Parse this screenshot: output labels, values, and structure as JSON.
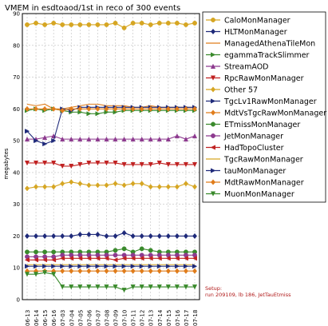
{
  "chart_data": {
    "type": "line",
    "title": "VMEM in esdtoaod/1st in reco of 300 events",
    "ylabel": "megabytes",
    "xlabel": "",
    "ylim": [
      0,
      90
    ],
    "yticks": [
      0,
      10,
      20,
      30,
      40,
      50,
      60,
      70,
      80,
      90
    ],
    "grid": true,
    "legend_placement": "right",
    "categories": [
      "06-13",
      "06-14",
      "06-15",
      "06-16",
      "07-03",
      "07-04",
      "07-05",
      "07-06",
      "07-07",
      "07-08",
      "07-09",
      "07-10",
      "07-11",
      "07-12",
      "07-13",
      "07-14",
      "07-15",
      "07-16",
      "07-17",
      "07-18"
    ],
    "x_tick_labels": [
      "06-13",
      "06-15",
      "07-03",
      "07-05",
      "07-07",
      "07-09",
      "07-11",
      "07-13",
      "07-15",
      "07-17",
      "06-14",
      "06-16",
      "07-04",
      "07-06",
      "07-08",
      "07-10",
      "07-12",
      "07-14",
      "07-16",
      "07-18"
    ],
    "annotation": {
      "line1": "Setup:",
      "line2": "run 209109, lb 186, JetTauEtmiss"
    },
    "series": [
      {
        "name": "CaloMonManager",
        "color": "#d6a623",
        "marker": "circle",
        "values": [
          86.5,
          87,
          86.5,
          87,
          86.5,
          86.5,
          86.5,
          86.5,
          86.5,
          86.5,
          87,
          85.5,
          87,
          87,
          86.5,
          87,
          87,
          87,
          86.5,
          87
        ]
      },
      {
        "name": "HLTMonManager",
        "color": "#1f2a7a",
        "marker": "diamond",
        "values": [
          20,
          20,
          20,
          20,
          20,
          20,
          20.5,
          20.5,
          20.5,
          20,
          20,
          21,
          20,
          20,
          20,
          20,
          20,
          20,
          20,
          20
        ]
      },
      {
        "name": "ManagedAthenaTileMon",
        "color": "#e07c1a",
        "marker": "none",
        "values": [
          61.5,
          61,
          61.5,
          60,
          60,
          60.5,
          61,
          61.5,
          61.5,
          61,
          61,
          61,
          60.5,
          60.5,
          61,
          60.5,
          60.5,
          60.5,
          60.5,
          60.5
        ]
      },
      {
        "name": "egammaTrackSlimmer",
        "color": "#3a8a2c",
        "marker": "tri-right",
        "values": [
          59.5,
          60,
          59.5,
          60,
          59.5,
          59,
          59,
          58.5,
          58.5,
          59,
          59,
          59.5,
          59.5,
          59.5,
          59.5,
          59.5,
          59.5,
          59.5,
          59.5,
          59.5
        ]
      },
      {
        "name": "StreamAOD",
        "color": "#8d3a8f",
        "marker": "tri-up",
        "values": [
          50.5,
          50.5,
          51,
          51.5,
          50.5,
          50.5,
          50.5,
          50.5,
          50.5,
          50.5,
          50.5,
          50.5,
          50.5,
          50.5,
          50.5,
          50.5,
          50.5,
          51.5,
          50.5,
          51.5
        ]
      },
      {
        "name": "RpcRawMonManager",
        "color": "#c02222",
        "marker": "tri-down",
        "values": [
          43,
          43,
          43,
          43,
          42,
          42,
          42.5,
          43,
          43,
          43,
          43,
          42.5,
          42.5,
          42.5,
          42.5,
          43,
          42.5,
          42.5,
          42.5,
          42.5
        ]
      },
      {
        "name": "Other 57",
        "color": "#d6a623",
        "marker": "diamond",
        "values": [
          35,
          35.5,
          35.5,
          35.5,
          36.5,
          37,
          36.5,
          36,
          36,
          36,
          36.5,
          36,
          36.5,
          36.5,
          35.5,
          35.5,
          35.5,
          35.5,
          36.5,
          35.5
        ]
      },
      {
        "name": "TgcLv1RawMonManager",
        "color": "#1f2a7a",
        "marker": "tri-right",
        "values": [
          53,
          50,
          49,
          50,
          60,
          59.5,
          60.5,
          60.5,
          60.5,
          60.5,
          60.5,
          60.5,
          60.5,
          60.5,
          60.5,
          60.5,
          60.5,
          60.5,
          60.5,
          60.5
        ]
      },
      {
        "name": "MdtVsTgcRawMonManager",
        "color": "#e07c1a",
        "marker": "diamond",
        "values": [
          60,
          60,
          60,
          60,
          59.5,
          60,
          60,
          60,
          60,
          60,
          60,
          60,
          60,
          60,
          60,
          60,
          60,
          60,
          60,
          60
        ]
      },
      {
        "name": "ETmissMonManager",
        "color": "#3a8a2c",
        "marker": "circle",
        "values": [
          15,
          15,
          15,
          15,
          15,
          15,
          15,
          15,
          15,
          15,
          15.5,
          16,
          15,
          16,
          15.5,
          15,
          15,
          15,
          15,
          15
        ]
      },
      {
        "name": "JetMonManager",
        "color": "#8d3a8f",
        "marker": "circle",
        "values": [
          13.5,
          13.5,
          13.5,
          13.5,
          14,
          14,
          14,
          14,
          14,
          14,
          14,
          14,
          14,
          14,
          14,
          14,
          14,
          14,
          14,
          14
        ]
      },
      {
        "name": "HadTopoCluster",
        "color": "#c02222",
        "marker": "tri-left",
        "values": [
          12.5,
          12.5,
          12.5,
          12.5,
          13,
          13,
          13,
          13,
          13,
          13,
          12.5,
          13,
          13,
          13,
          13,
          13,
          13,
          13,
          13,
          13
        ]
      },
      {
        "name": "TgcRawMonManager",
        "color": "#d6a623",
        "marker": "none",
        "values": [
          11,
          11,
          11,
          11,
          11,
          11,
          11,
          11,
          11,
          11,
          11,
          11,
          11,
          11,
          11,
          11,
          11,
          11,
          11,
          11
        ]
      },
      {
        "name": "tauMonManager",
        "color": "#1f2a7a",
        "marker": "tri-right",
        "values": [
          10.5,
          10.5,
          10.5,
          10.5,
          10.5,
          10.5,
          10.5,
          10.5,
          10.5,
          10.5,
          10.5,
          10.5,
          10.5,
          10.5,
          10.5,
          10.5,
          10.5,
          10.5,
          10.5,
          10.5
        ]
      },
      {
        "name": "MdtRawMonManager",
        "color": "#e07c1a",
        "marker": "diamond",
        "values": [
          9,
          9,
          9,
          9,
          9,
          9,
          9,
          9,
          9,
          9,
          9,
          9,
          9,
          9,
          9,
          9,
          9,
          9,
          9,
          9
        ]
      },
      {
        "name": "MuonMonManager",
        "color": "#3a8a2c",
        "marker": "tri-down",
        "values": [
          8,
          8,
          8.5,
          8,
          4,
          4,
          4,
          4,
          4,
          4,
          4,
          3,
          4,
          4,
          4,
          4,
          4,
          4,
          4,
          4
        ]
      }
    ]
  }
}
